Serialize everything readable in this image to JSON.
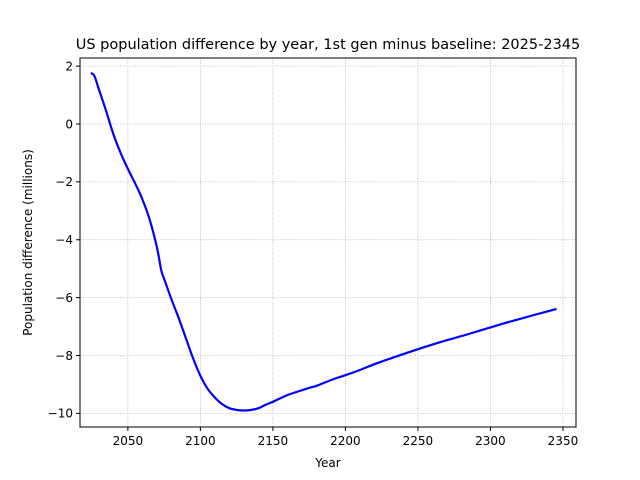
{
  "chart_data": {
    "type": "line",
    "title": "US population difference by year, 1st gen minus baseline: 2025-2345",
    "xlabel": "Year",
    "ylabel": "Population difference (millions)",
    "xlim": [
      2017,
      2359
    ],
    "ylim": [
      -10.47,
      2.28
    ],
    "xticks": [
      2050,
      2100,
      2150,
      2200,
      2250,
      2300,
      2350
    ],
    "yticks": [
      -10,
      -8,
      -6,
      -4,
      -2,
      0,
      2
    ],
    "grid": true,
    "line_color": "#0000ff",
    "series": [
      {
        "x": [
          2025,
          2027,
          2030,
          2035,
          2040,
          2045,
          2050,
          2055,
          2060,
          2065,
          2070,
          2073,
          2075,
          2080,
          2085,
          2090,
          2095,
          2100,
          2105,
          2110,
          2115,
          2120,
          2125,
          2130,
          2135,
          2140,
          2145,
          2150,
          2155,
          2160,
          2165,
          2170,
          2175,
          2180,
          2185,
          2190,
          2195,
          2200,
          2210,
          2220,
          2230,
          2240,
          2250,
          2260,
          2270,
          2280,
          2290,
          2300,
          2310,
          2320,
          2330,
          2345
        ],
        "y": [
          1.75,
          1.65,
          1.2,
          0.45,
          -0.35,
          -1.0,
          -1.55,
          -2.05,
          -2.6,
          -3.3,
          -4.25,
          -5.05,
          -5.35,
          -6.05,
          -6.7,
          -7.4,
          -8.1,
          -8.7,
          -9.15,
          -9.45,
          -9.68,
          -9.82,
          -9.88,
          -9.9,
          -9.88,
          -9.82,
          -9.7,
          -9.6,
          -9.48,
          -9.37,
          -9.28,
          -9.2,
          -9.12,
          -9.05,
          -8.95,
          -8.85,
          -8.76,
          -8.68,
          -8.5,
          -8.3,
          -8.12,
          -7.95,
          -7.78,
          -7.62,
          -7.47,
          -7.33,
          -7.18,
          -7.03,
          -6.88,
          -6.74,
          -6.6,
          -6.4
        ]
      }
    ]
  }
}
